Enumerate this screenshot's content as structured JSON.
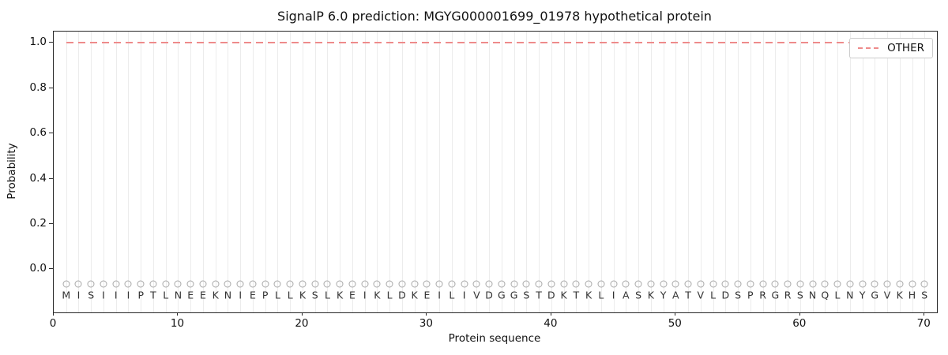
{
  "chart_data": {
    "type": "line",
    "title": "SignalP 6.0 prediction: MGYG000001699_01978 hypothetical protein",
    "xlabel": "Protein sequence",
    "ylabel": "Probability",
    "xlim": [
      0,
      71
    ],
    "ylim": [
      -0.19,
      1.05
    ],
    "x_ticks": [
      0,
      10,
      20,
      30,
      40,
      50,
      60,
      70
    ],
    "y_ticks": [
      0.0,
      0.2,
      0.4,
      0.6,
      0.8,
      1.0
    ],
    "grid": "vertical-gridline-at-every-residue",
    "legend_position": "upper right",
    "series": [
      {
        "name": "OTHER",
        "style": "dashed",
        "color": "#ee8b8b",
        "x": [
          1,
          2,
          3,
          4,
          5,
          6,
          7,
          8,
          9,
          10,
          11,
          12,
          13,
          14,
          15,
          16,
          17,
          18,
          19,
          20,
          21,
          22,
          23,
          24,
          25,
          26,
          27,
          28,
          29,
          30,
          31,
          32,
          33,
          34,
          35,
          36,
          37,
          38,
          39,
          40,
          41,
          42,
          43,
          44,
          45,
          46,
          47,
          48,
          49,
          50,
          51,
          52,
          53,
          54,
          55,
          56,
          57,
          58,
          59,
          60,
          61,
          62,
          63,
          64,
          65,
          66,
          67,
          68,
          69,
          70
        ],
        "values": [
          1.0,
          1.0,
          1.0,
          1.0,
          1.0,
          1.0,
          1.0,
          1.0,
          1.0,
          1.0,
          1.0,
          1.0,
          1.0,
          1.0,
          1.0,
          1.0,
          1.0,
          1.0,
          1.0,
          1.0,
          1.0,
          1.0,
          1.0,
          1.0,
          1.0,
          1.0,
          1.0,
          1.0,
          1.0,
          1.0,
          1.0,
          1.0,
          1.0,
          1.0,
          1.0,
          1.0,
          1.0,
          1.0,
          1.0,
          1.0,
          1.0,
          1.0,
          1.0,
          1.0,
          1.0,
          1.0,
          1.0,
          1.0,
          1.0,
          1.0,
          1.0,
          1.0,
          1.0,
          1.0,
          1.0,
          1.0,
          1.0,
          1.0,
          1.0,
          1.0,
          1.0,
          1.0,
          1.0,
          1.0,
          1.0,
          1.0,
          1.0,
          1.0,
          1.0,
          1.0
        ]
      }
    ],
    "sequence": {
      "residues": "MISIIIPTLNEEKNIEPLLKSLKEIKLDKEILIVDGGSTDKTKLIASKYATVLDSPRGRSNQLNYGVKHS",
      "marker_y": -0.065,
      "letter_y": -0.115,
      "marker_color": "#a8a8a8",
      "letter_color": "#333333"
    },
    "colors": {
      "other_line": "#ee8b8b",
      "gridline": "#ececec",
      "spine": "#262626",
      "background": "#ffffff"
    }
  }
}
